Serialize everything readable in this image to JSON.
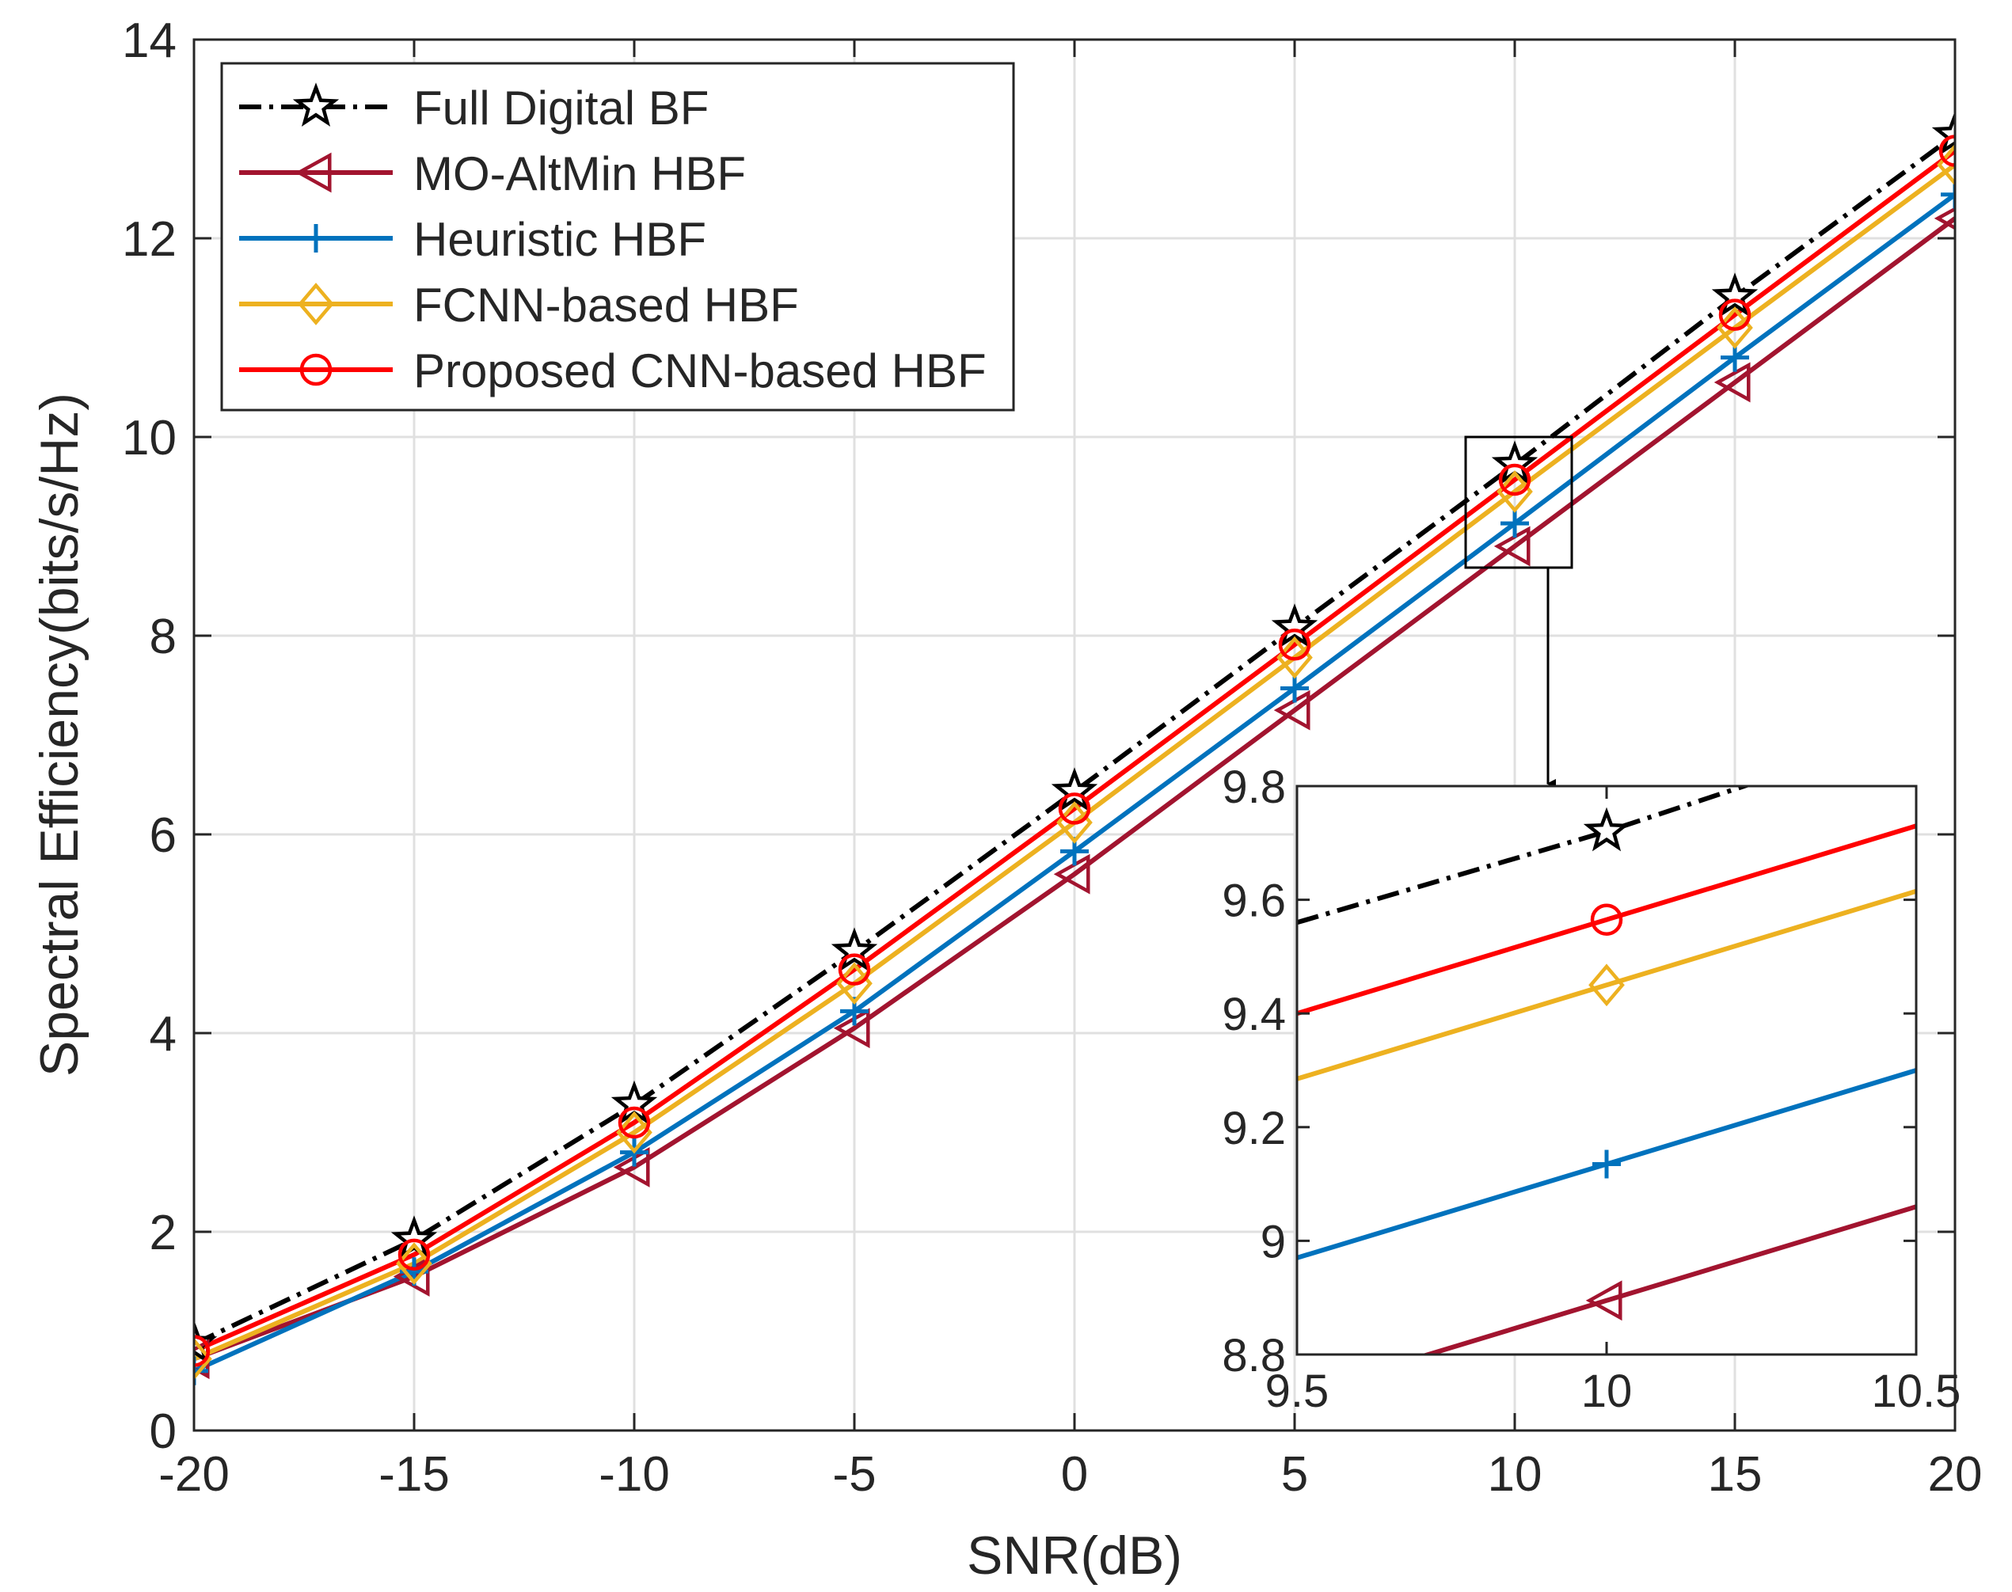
{
  "chart_data": [
    {
      "type": "line",
      "title": "",
      "xlabel": "SNR(dB)",
      "ylabel": "Spectral Efficiency(bits/s/Hz)",
      "xlim": [
        -20,
        20
      ],
      "ylim": [
        0,
        14
      ],
      "xticks": [
        -20,
        -15,
        -10,
        -5,
        0,
        5,
        10,
        15,
        20
      ],
      "xtick_labels": [
        "-20",
        "-15",
        "-10",
        "-5",
        "0",
        "5",
        "10",
        "15",
        "20"
      ],
      "yticks": [
        0,
        2,
        4,
        6,
        8,
        10,
        12,
        14
      ],
      "ytick_labels": [
        "0",
        "2",
        "4",
        "6",
        "8",
        "10",
        "12",
        "14"
      ],
      "grid": true,
      "legend_position": "top-left",
      "x": [
        -20,
        -15,
        -10,
        -5,
        0,
        5,
        10,
        15,
        20
      ],
      "series": [
        {
          "name": "Full Digital BF",
          "color": "#000000",
          "dash": "dashdot",
          "marker": "star",
          "values": [
            0.87,
            1.92,
            3.28,
            4.82,
            6.43,
            8.08,
            9.72,
            11.41,
            13.04
          ]
        },
        {
          "name": "MO-AltMin HBF",
          "color": "#A2142F",
          "dash": "solid",
          "marker": "triangle-left",
          "values": [
            0.72,
            1.55,
            2.65,
            4.05,
            5.6,
            7.25,
            8.9,
            10.55,
            12.2
          ]
        },
        {
          "name": "Heuristic HBF",
          "color": "#0072BD",
          "dash": "solid",
          "marker": "plus",
          "values": [
            0.6,
            1.6,
            2.8,
            4.22,
            5.83,
            7.47,
            9.13,
            10.8,
            12.44
          ]
        },
        {
          "name": "FCNN-based HBF",
          "color": "#EDB120",
          "dash": "solid",
          "marker": "diamond",
          "values": [
            0.72,
            1.68,
            3.0,
            4.5,
            6.12,
            7.78,
            9.45,
            11.1,
            12.74
          ]
        },
        {
          "name": "Proposed CNN-based HBF",
          "color": "#FF0000",
          "dash": "solid",
          "marker": "circle",
          "values": [
            0.8,
            1.77,
            3.1,
            4.64,
            6.26,
            7.91,
            9.57,
            11.23,
            12.88
          ]
        }
      ]
    },
    {
      "type": "line",
      "title": "",
      "xlabel": "",
      "ylabel": "",
      "xlim": [
        9.5,
        10.5
      ],
      "ylim": [
        8.8,
        9.8
      ],
      "xticks": [
        9.5,
        10,
        10.5
      ],
      "xtick_labels": [
        "9.5",
        "10",
        "10.5"
      ],
      "yticks": [
        8.8,
        9.0,
        9.2,
        9.4,
        9.6,
        9.8
      ],
      "ytick_labels": [
        "8.8",
        "9",
        "9.2",
        "9.4",
        "9.6",
        "9.8"
      ],
      "grid": false,
      "x": [
        9.5,
        10,
        10.5
      ],
      "series": [
        {
          "color": "#000000",
          "values": [
            9.56,
            9.72,
            9.9
          ]
        },
        {
          "color": "#A2142F",
          "values": [
            8.73,
            8.895,
            9.06
          ]
        },
        {
          "color": "#0072BD",
          "values": [
            8.97,
            9.135,
            9.3
          ]
        },
        {
          "color": "#EDB120",
          "values": [
            9.285,
            9.45,
            9.615
          ]
        },
        {
          "color": "#FF0000",
          "values": [
            9.4,
            9.565,
            9.73
          ]
        }
      ]
    }
  ]
}
